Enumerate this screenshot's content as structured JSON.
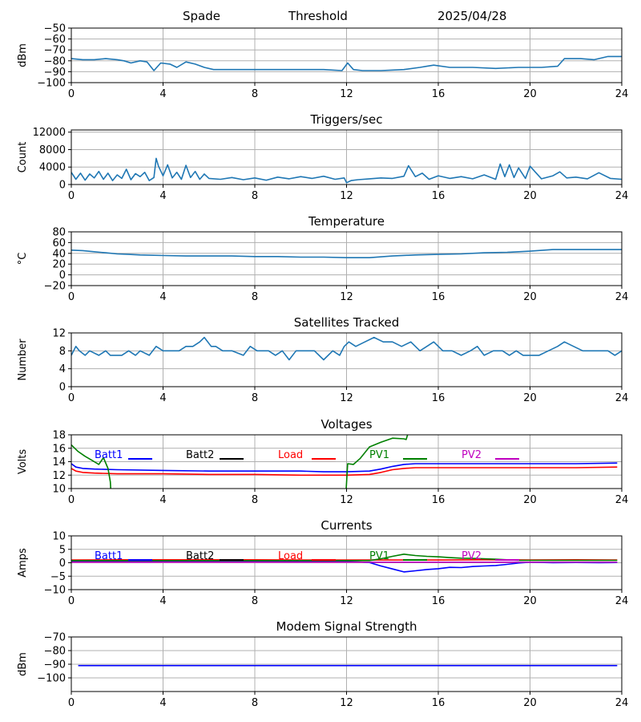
{
  "header": {
    "site": "Spade",
    "mode": "Threshold",
    "date": "2025/04/28"
  },
  "chart_data": [
    {
      "id": "threshold",
      "type": "line",
      "title": "",
      "ylabel": "dBm",
      "xlim": [
        0,
        24
      ],
      "xticks": [
        0,
        4,
        8,
        12,
        16,
        20,
        24
      ],
      "ylim": [
        -100,
        -50
      ],
      "yticks": [
        -100,
        -90,
        -80,
        -70,
        -60,
        -50
      ],
      "grid": true,
      "series": [
        {
          "color": "#1f77b4",
          "x": [
            0,
            0.5,
            1,
            1.5,
            2,
            2.3,
            2.6,
            3,
            3.3,
            3.6,
            3.9,
            4.3,
            4.6,
            5,
            5.4,
            5.8,
            6.2,
            7,
            8,
            9,
            10,
            11,
            11.8,
            12.05,
            12.3,
            12.7,
            13.5,
            14.5,
            15.2,
            15.5,
            15.8,
            16.5,
            17.5,
            18.5,
            19.5,
            20.5,
            21.2,
            21.5,
            22.2,
            22.8,
            23.4,
            24
          ],
          "y": [
            -78,
            -79,
            -79,
            -78,
            -79,
            -80,
            -82,
            -80,
            -81,
            -89,
            -82,
            -83,
            -86,
            -81,
            -83,
            -86,
            -88,
            -88,
            -88,
            -88,
            -88,
            -88,
            -89,
            -82,
            -88,
            -89,
            -89,
            -88,
            -86,
            -85,
            -84,
            -86,
            -86,
            -87,
            -86,
            -86,
            -85,
            -78,
            -78,
            -79,
            -76,
            -76
          ]
        }
      ]
    },
    {
      "id": "triggers",
      "type": "line",
      "title": "Triggers/sec",
      "ylabel": "Count",
      "xlim": [
        0,
        24
      ],
      "xticks": [
        0,
        4,
        8,
        12,
        16,
        20,
        24
      ],
      "ylim": [
        0,
        12500
      ],
      "yticks": [
        0,
        4000,
        8000,
        12000
      ],
      "grid": true,
      "series": [
        {
          "color": "#1f77b4",
          "x": [
            0,
            0.2,
            0.4,
            0.6,
            0.8,
            1,
            1.2,
            1.4,
            1.6,
            1.8,
            2,
            2.2,
            2.4,
            2.6,
            2.8,
            3,
            3.2,
            3.4,
            3.6,
            3.7,
            3.8,
            4,
            4.2,
            4.4,
            4.6,
            4.8,
            5,
            5.2,
            5.4,
            5.6,
            5.8,
            6,
            6.5,
            7,
            7.5,
            8,
            8.5,
            9,
            9.5,
            10,
            10.5,
            11,
            11.5,
            11.9,
            12,
            12.2,
            12.5,
            13,
            13.5,
            14,
            14.5,
            14.7,
            15,
            15.3,
            15.6,
            16,
            16.5,
            17,
            17.5,
            18,
            18.5,
            18.7,
            18.9,
            19.1,
            19.3,
            19.5,
            19.8,
            20,
            20.5,
            21,
            21.3,
            21.6,
            22,
            22.5,
            23,
            23.5,
            24
          ],
          "y": [
            2800,
            1200,
            2600,
            1000,
            2400,
            1500,
            3000,
            1200,
            2600,
            900,
            2200,
            1400,
            3500,
            1100,
            2500,
            1800,
            2800,
            900,
            1600,
            6000,
            4200,
            2000,
            4500,
            1500,
            2800,
            1200,
            4400,
            1600,
            3000,
            1200,
            2400,
            1400,
            1200,
            1600,
            1100,
            1500,
            1000,
            1700,
            1300,
            1800,
            1400,
            1900,
            1200,
            1500,
            400,
            900,
            1100,
            1300,
            1500,
            1400,
            1900,
            4300,
            1800,
            2600,
            1200,
            2000,
            1400,
            1800,
            1300,
            2200,
            1200,
            4700,
            1800,
            4500,
            1600,
            3800,
            1400,
            4200,
            1300,
            2000,
            2900,
            1500,
            1700,
            1300,
            2700,
            1400,
            1200
          ]
        }
      ]
    },
    {
      "id": "temperature",
      "type": "line",
      "title": "Temperature",
      "ylabel": "°C",
      "xlim": [
        0,
        24
      ],
      "xticks": [
        0,
        4,
        8,
        12,
        16,
        20,
        24
      ],
      "ylim": [
        -20,
        80
      ],
      "yticks": [
        -20,
        0,
        20,
        40,
        60,
        80
      ],
      "grid": true,
      "series": [
        {
          "color": "#1f77b4",
          "x": [
            0,
            0.5,
            1,
            1.5,
            2,
            2.5,
            3,
            4,
            5,
            6,
            7,
            8,
            9,
            10,
            11,
            12,
            13,
            14,
            15,
            16,
            17,
            18,
            19,
            20,
            21,
            22,
            23,
            24
          ],
          "y": [
            46,
            45,
            43,
            41,
            39,
            38,
            37,
            36,
            35,
            35,
            35,
            34,
            34,
            33,
            33,
            32,
            32,
            35,
            37,
            38,
            39,
            41,
            42,
            44,
            47,
            47,
            47,
            47
          ]
        }
      ]
    },
    {
      "id": "satellites",
      "type": "line",
      "title": "Satellites Tracked",
      "ylabel": "Number",
      "xlim": [
        0,
        24
      ],
      "xticks": [
        0,
        4,
        8,
        12,
        16,
        20,
        24
      ],
      "ylim": [
        0,
        12
      ],
      "yticks": [
        0,
        4,
        8,
        12
      ],
      "grid": true,
      "series": [
        {
          "color": "#1f77b4",
          "x": [
            0,
            0.2,
            0.35,
            0.6,
            0.8,
            1.2,
            1.5,
            1.7,
            2.2,
            2.5,
            2.8,
            3.0,
            3.4,
            3.7,
            4.0,
            4.5,
            4.7,
            5.0,
            5.3,
            5.6,
            5.8,
            6.1,
            6.3,
            6.6,
            7.0,
            7.5,
            7.8,
            8.1,
            8.6,
            8.9,
            9.2,
            9.5,
            9.8,
            10.2,
            10.6,
            11.0,
            11.4,
            11.7,
            11.9,
            12.1,
            12.4,
            12.8,
            13.2,
            13.6,
            14.0,
            14.4,
            14.8,
            15.2,
            15.5,
            15.8,
            16.2,
            16.6,
            17.0,
            17.4,
            17.7,
            18.0,
            18.4,
            18.8,
            19.1,
            19.4,
            19.7,
            20.1,
            20.4,
            20.8,
            21.2,
            21.5,
            21.9,
            22.3,
            22.6,
            23.0,
            23.4,
            23.7,
            24
          ],
          "y": [
            7,
            9,
            8,
            7,
            8,
            7,
            8,
            7,
            7,
            8,
            7,
            8,
            7,
            9,
            8,
            8,
            8,
            9,
            9,
            10,
            11,
            9,
            9,
            8,
            8,
            7,
            9,
            8,
            8,
            7,
            8,
            6,
            8,
            8,
            8,
            6,
            8,
            7,
            9,
            10,
            9,
            10,
            11,
            10,
            10,
            9,
            10,
            8,
            9,
            10,
            8,
            8,
            7,
            8,
            9,
            7,
            8,
            8,
            7,
            8,
            7,
            7,
            7,
            8,
            9,
            10,
            9,
            8,
            8,
            8,
            8,
            7,
            8
          ]
        }
      ]
    },
    {
      "id": "voltages",
      "type": "line",
      "title": "Voltages",
      "ylabel": "Volts",
      "xlim": [
        0,
        24
      ],
      "xticks": [
        0,
        4,
        8,
        12,
        16,
        20,
        24
      ],
      "ylim": [
        10,
        18
      ],
      "yticks": [
        10,
        12,
        14,
        16,
        18
      ],
      "grid": true,
      "legend": "top",
      "series": [
        {
          "name": "Batt1",
          "color": "#0000ff",
          "x": [
            0,
            0.2,
            0.5,
            1,
            2,
            4,
            6,
            8,
            10,
            11,
            12,
            13,
            13.5,
            14,
            14.5,
            15,
            16,
            18,
            20,
            22,
            23.8
          ],
          "y": [
            13.7,
            13.2,
            13,
            12.9,
            12.8,
            12.7,
            12.6,
            12.6,
            12.6,
            12.5,
            12.5,
            12.6,
            12.9,
            13.3,
            13.6,
            13.7,
            13.7,
            13.7,
            13.7,
            13.7,
            13.8
          ]
        },
        {
          "name": "Batt2",
          "color": "#000000",
          "x": [],
          "y": []
        },
        {
          "name": "Load",
          "color": "#ff0000",
          "x": [
            0,
            0.2,
            0.5,
            1,
            2,
            4,
            6,
            8,
            10,
            11,
            12,
            13,
            13.5,
            14,
            14.5,
            15,
            16,
            18,
            20,
            22,
            23.8
          ],
          "y": [
            13,
            12.6,
            12.4,
            12.3,
            12.2,
            12.2,
            12.1,
            12.1,
            12.0,
            12.0,
            12.0,
            12.1,
            12.4,
            12.8,
            13.0,
            13.1,
            13.1,
            13.1,
            13.1,
            13.1,
            13.2
          ]
        },
        {
          "name": "PV1",
          "color": "#008000",
          "x": [
            0,
            0.3,
            0.6,
            0.9,
            1.0,
            1.2,
            1.4,
            1.6,
            1.7,
            1.75,
            11.95,
            12.05,
            12.3,
            12.6,
            13.0,
            13.5,
            14.0,
            14.5,
            14.6,
            14.75
          ],
          "y": [
            16.5,
            15.5,
            14.8,
            14.2,
            14.0,
            13.6,
            14.6,
            13.0,
            11.0,
            8,
            8,
            13.7,
            13.6,
            14.5,
            16.2,
            16.9,
            17.5,
            17.4,
            17.3,
            19
          ]
        },
        {
          "name": "PV2",
          "color": "#c000c0",
          "x": [],
          "y": []
        }
      ]
    },
    {
      "id": "currents",
      "type": "line",
      "title": "Currents",
      "ylabel": "Amps",
      "xlim": [
        0,
        24
      ],
      "xticks": [
        0,
        4,
        8,
        12,
        16,
        20,
        24
      ],
      "ylim": [
        -10,
        10
      ],
      "yticks": [
        -10,
        -5,
        0,
        5,
        10
      ],
      "grid": true,
      "legend": "top",
      "series": [
        {
          "name": "Batt1",
          "color": "#0000ff",
          "x": [
            0,
            2,
            4,
            6,
            8,
            10,
            12,
            12.5,
            13,
            13.5,
            14,
            14.5,
            15,
            15.5,
            16,
            16.5,
            17,
            17.5,
            18,
            18.5,
            19,
            19.5,
            20,
            21,
            22,
            23,
            23.8
          ],
          "y": [
            0.4,
            0.4,
            0.4,
            0.4,
            0.4,
            0.4,
            0.4,
            0.3,
            0.1,
            -1.2,
            -2.3,
            -3.4,
            -3.0,
            -2.5,
            -2.2,
            -1.7,
            -1.8,
            -1.4,
            -1.2,
            -1.0,
            -0.6,
            -0.1,
            0.2,
            0.0,
            0.1,
            0.0,
            0.1
          ]
        },
        {
          "name": "Batt2",
          "color": "#000000",
          "x": [],
          "y": []
        },
        {
          "name": "Load",
          "color": "#ff0000",
          "x": [
            0,
            2,
            4,
            6,
            8,
            10,
            12,
            14,
            16,
            18,
            20,
            22,
            23.8
          ],
          "y": [
            1.0,
            1.1,
            1.1,
            1.1,
            1.1,
            1.0,
            1.0,
            1.0,
            1.0,
            1.1,
            1.0,
            1.1,
            1.0
          ]
        },
        {
          "name": "PV1",
          "color": "#008000",
          "x": [
            0,
            2,
            4,
            6,
            8,
            10,
            12,
            12.5,
            13,
            13.5,
            14,
            14.5,
            15,
            15.5,
            16,
            16.5,
            17,
            17.5,
            18,
            18.5,
            19,
            19.5,
            20,
            21,
            22,
            23,
            23.8
          ],
          "y": [
            0.8,
            0.8,
            0.8,
            0.8,
            0.8,
            0.8,
            0.8,
            0.8,
            0.8,
            1.5,
            2.4,
            3.2,
            2.7,
            2.4,
            2.2,
            1.9,
            1.7,
            1.6,
            1.5,
            1.3,
            1.1,
            0.9,
            0.9,
            0.9,
            0.9,
            0.9,
            0.9
          ]
        },
        {
          "name": "PV2",
          "color": "#c000c0",
          "x": [
            0,
            4,
            8,
            12,
            16,
            20,
            23.8
          ],
          "y": [
            0.2,
            0.2,
            0.2,
            0.2,
            0.2,
            0.2,
            0.2
          ]
        }
      ]
    },
    {
      "id": "modem",
      "type": "line",
      "title": "Modem Signal Strength",
      "ylabel": "dBm",
      "xlim": [
        0,
        24
      ],
      "xticks": [
        0,
        4,
        8,
        12,
        16,
        20,
        24
      ],
      "ylim": [
        -110,
        -70
      ],
      "yticks": [
        -100,
        -90,
        -80,
        -70
      ],
      "grid": true,
      "series": [
        {
          "color": "#0000ff",
          "x": [
            0.3,
            23.8
          ],
          "y": [
            -91,
            -91
          ]
        }
      ]
    }
  ]
}
